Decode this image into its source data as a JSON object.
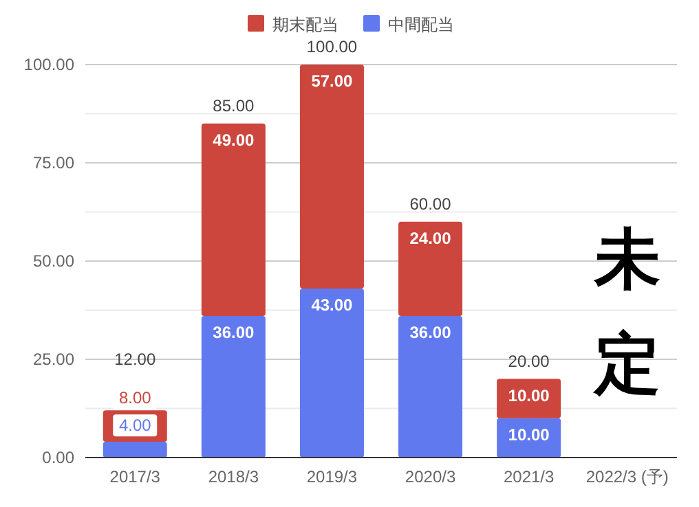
{
  "chart_data": {
    "type": "bar",
    "stacked": true,
    "categories": [
      "2017/3",
      "2018/3",
      "2019/3",
      "2020/3",
      "2021/3",
      "2022/3 (予)"
    ],
    "series": [
      {
        "name": "中間配当",
        "color": "#6079ef",
        "values": [
          4,
          36,
          43,
          36,
          10,
          null
        ],
        "value_labels": [
          "4.00",
          "36.00",
          "43.00",
          "36.00",
          "10.00",
          null
        ]
      },
      {
        "name": "期末配当",
        "color": "#cc463d",
        "values": [
          8,
          49,
          57,
          24,
          10,
          null
        ],
        "value_labels": [
          "8.00",
          "49.00",
          "57.00",
          "24.00",
          "10.00",
          null
        ]
      }
    ],
    "totals": [
      "12.00",
      "85.00",
      "100.00",
      "60.00",
      "20.00",
      null
    ],
    "ylim": [
      0,
      100
    ],
    "yticks": [
      {
        "value": 0,
        "label": "0.00"
      },
      {
        "value": 12.5,
        "label": null
      },
      {
        "value": 25,
        "label": "25.00"
      },
      {
        "value": 37.5,
        "label": null
      },
      {
        "value": 50,
        "label": "50.00"
      },
      {
        "value": 62.5,
        "label": null
      },
      {
        "value": 75,
        "label": "75.00"
      },
      {
        "value": 87.5,
        "label": null
      },
      {
        "value": 100,
        "label": "100.00"
      }
    ],
    "grid": "y",
    "legend": "top",
    "annotations": [
      "未定"
    ]
  }
}
